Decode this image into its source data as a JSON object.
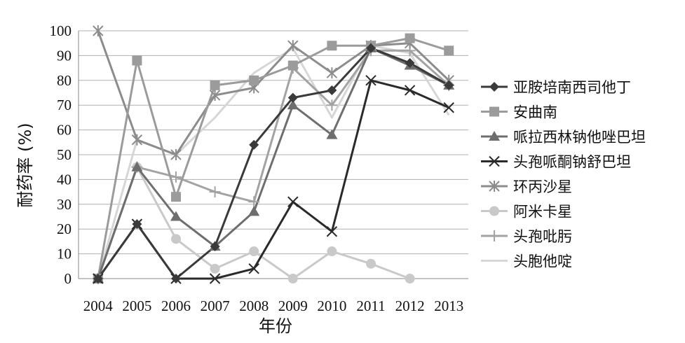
{
  "chart_data": {
    "type": "line",
    "xlabel": "年份",
    "ylabel": "耐药率 (%)",
    "ylim": [
      0,
      100
    ],
    "yticks": [
      0,
      10,
      20,
      30,
      40,
      50,
      60,
      70,
      80,
      90,
      100
    ],
    "categories": [
      "2004",
      "2005",
      "2006",
      "2007",
      "2008",
      "2009",
      "2010",
      "2011",
      "2012",
      "2013"
    ],
    "grid": "horizontal",
    "legend_position": "right",
    "series": [
      {
        "name": "亚胺培南西司他丁",
        "color": "#3a3a3a",
        "marker": "diamond",
        "values": [
          0,
          22,
          0,
          13,
          54,
          73,
          76,
          93,
          87,
          78
        ]
      },
      {
        "name": "安曲南",
        "color": "#9b9b9b",
        "marker": "square",
        "values": [
          0,
          88,
          33,
          78,
          80,
          86,
          94,
          94,
          97,
          92
        ]
      },
      {
        "name": "哌拉西林钠他唑巴坦",
        "color": "#6e6e6e",
        "marker": "triangle",
        "values": [
          0,
          45,
          25,
          13,
          27,
          70,
          58,
          93,
          86,
          78
        ]
      },
      {
        "name": "头孢哌酮钠舒巴坦",
        "color": "#2a2a2a",
        "marker": "x",
        "values": [
          0,
          22,
          0,
          0,
          4,
          31,
          19,
          80,
          76,
          69
        ]
      },
      {
        "name": "环丙沙星",
        "color": "#8c8c8c",
        "marker": "asterisk",
        "values": [
          100,
          56,
          50,
          74,
          77,
          94,
          83,
          94,
          95,
          80
        ]
      },
      {
        "name": "阿米卡星",
        "color": "#c9c9c9",
        "marker": "circle",
        "values": [
          0,
          45,
          16,
          4,
          11,
          0,
          11,
          6,
          0,
          null
        ]
      },
      {
        "name": "头孢吡肟",
        "color": "#a3a3a3",
        "marker": "plus",
        "values": [
          0,
          45,
          41,
          35,
          31,
          85,
          70,
          92,
          92,
          78
        ]
      },
      {
        "name": "头胞他啶",
        "color": "#d6d6d6",
        "marker": "none",
        "values": [
          0,
          56,
          50,
          65,
          83,
          93,
          65,
          94,
          91,
          66
        ]
      }
    ]
  }
}
